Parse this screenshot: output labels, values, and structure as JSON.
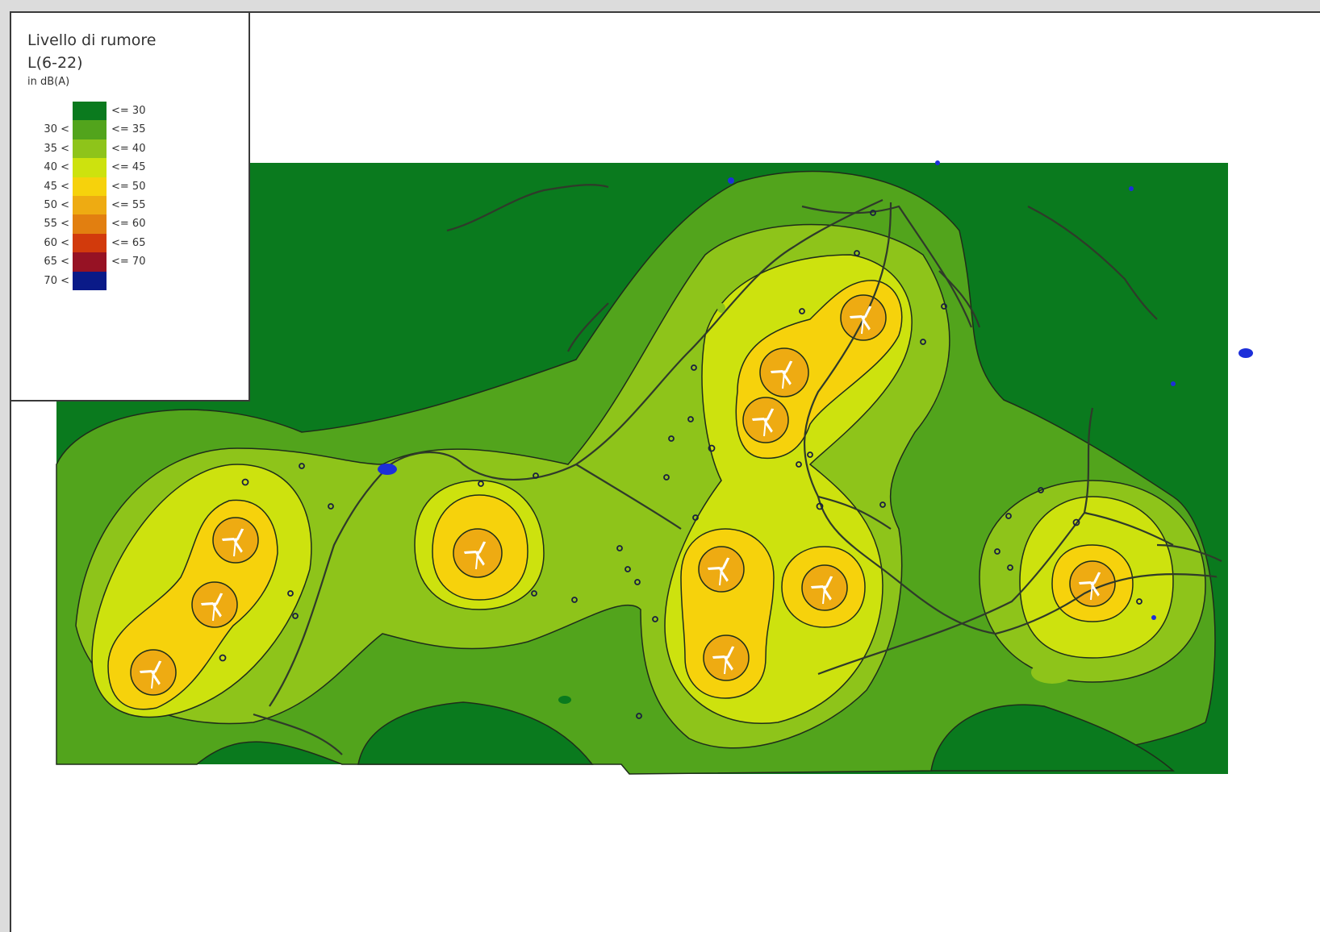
{
  "legend": {
    "title": "Livello di rumore",
    "subtitle": "L(6-22)",
    "unit": "in dB(A)",
    "classes": [
      {
        "lower": "",
        "upper": "<= 30",
        "color": "#0a7a1e"
      },
      {
        "lower": "30 <",
        "upper": "<= 35",
        "color": "#52a41c"
      },
      {
        "lower": "35 <",
        "upper": "<= 40",
        "color": "#8ec41a"
      },
      {
        "lower": "40 <",
        "upper": "<= 45",
        "color": "#cde20e"
      },
      {
        "lower": "45 <",
        "upper": "<= 50",
        "color": "#f6d20c"
      },
      {
        "lower": "50 <",
        "upper": "<= 55",
        "color": "#eeab12"
      },
      {
        "lower": "55 <",
        "upper": "<= 60",
        "color": "#e27f10"
      },
      {
        "lower": "60 <",
        "upper": "<= 65",
        "color": "#d23a0c"
      },
      {
        "lower": "65 <",
        "upper": "<= 70",
        "color": "#961224"
      },
      {
        "lower": "70 <",
        "upper": "",
        "color": "#0a1a88"
      }
    ]
  },
  "map": {
    "turbine_count": 11,
    "turbine_icon": "wind-turbine-icon",
    "road_color": "#2f3a2a",
    "water_color": "#1d2fd9"
  }
}
